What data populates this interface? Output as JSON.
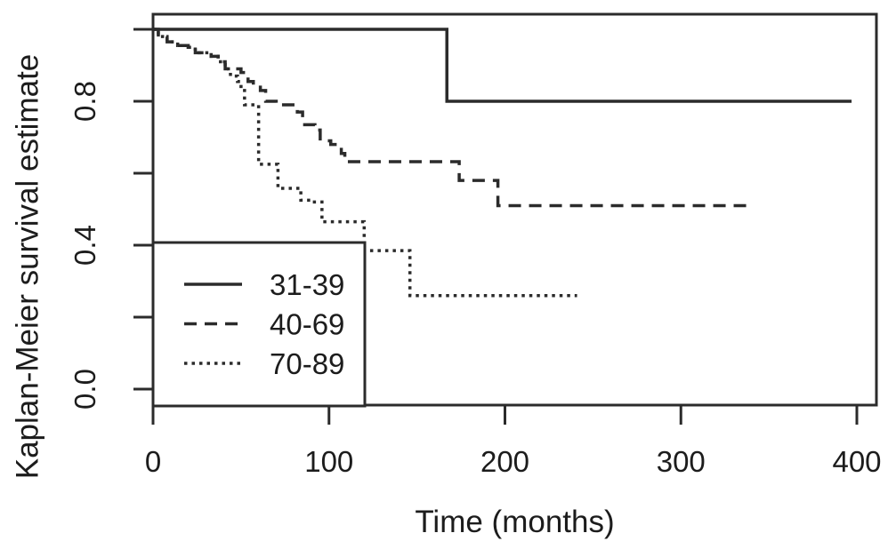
{
  "figure": {
    "background": "#ffffff",
    "line_color": "#2b2b2b",
    "text_color": "#1c1c1c"
  },
  "chart_data": {
    "type": "line",
    "subtype": "kaplan-meier-step",
    "title": "",
    "xlabel": "Time (months)",
    "ylabel": "Kaplan-Meier survival estimate",
    "xlim": [
      0,
      411
    ],
    "ylim": [
      -0.04,
      1.04
    ],
    "grid": false,
    "legend_position": "bottom-left-inside-box",
    "x_axis": {
      "tick_values": [
        0,
        100,
        200,
        300,
        400
      ],
      "tick_labels": [
        "0",
        "100",
        "200",
        "300",
        "400"
      ]
    },
    "y_axis": {
      "tick_values": [
        0.0,
        0.2,
        0.4,
        0.6,
        0.8,
        1.0
      ],
      "labeled_tick_values": [
        0.0,
        0.4,
        0.8
      ],
      "labeled_tick_labels": [
        "0.0",
        "0.4",
        "0.8"
      ]
    },
    "series": [
      {
        "name": "31-39",
        "line_style": "solid",
        "steps": [
          [
            0,
            1.0
          ],
          [
            167,
            0.8
          ]
        ],
        "end_time": 397
      },
      {
        "name": "40-69",
        "line_style": "dashed",
        "steps": [
          [
            0,
            1.0
          ],
          [
            3,
            0.98
          ],
          [
            8,
            0.965
          ],
          [
            14,
            0.955
          ],
          [
            20,
            0.95
          ],
          [
            24,
            0.935
          ],
          [
            33,
            0.925
          ],
          [
            37,
            0.91
          ],
          [
            41,
            0.89
          ],
          [
            50,
            0.88
          ],
          [
            54,
            0.855
          ],
          [
            57,
            0.845
          ],
          [
            61,
            0.83
          ],
          [
            64,
            0.8
          ],
          [
            70,
            0.79
          ],
          [
            82,
            0.77
          ],
          [
            85,
            0.735
          ],
          [
            92,
            0.72
          ],
          [
            95,
            0.69
          ],
          [
            101,
            0.68
          ],
          [
            107,
            0.655
          ],
          [
            109,
            0.632
          ],
          [
            174,
            0.58
          ],
          [
            196,
            0.51
          ]
        ],
        "end_time": 338
      },
      {
        "name": "70-89",
        "line_style": "dotted",
        "steps": [
          [
            0,
            1.0
          ],
          [
            3,
            0.98
          ],
          [
            8,
            0.965
          ],
          [
            14,
            0.955
          ],
          [
            20,
            0.95
          ],
          [
            24,
            0.935
          ],
          [
            33,
            0.925
          ],
          [
            37,
            0.91
          ],
          [
            41,
            0.89
          ],
          [
            44,
            0.87
          ],
          [
            48,
            0.855
          ],
          [
            50,
            0.835
          ],
          [
            52,
            0.79
          ],
          [
            60,
            0.625
          ],
          [
            71,
            0.558
          ],
          [
            84,
            0.525
          ],
          [
            90,
            0.52
          ],
          [
            96,
            0.465
          ],
          [
            120,
            0.385
          ],
          [
            146,
            0.26
          ]
        ],
        "end_time": 241
      }
    ],
    "legend": {
      "entries": [
        {
          "label": "31-39",
          "line_style": "solid"
        },
        {
          "label": "40-69",
          "line_style": "dashed"
        },
        {
          "label": "70-89",
          "line_style": "dotted"
        }
      ]
    }
  }
}
